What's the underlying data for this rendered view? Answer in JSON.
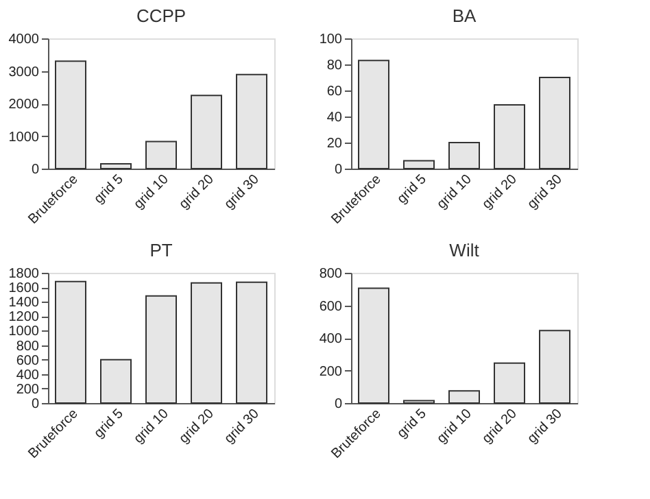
{
  "chart_data": [
    {
      "type": "bar",
      "title": "CCPP",
      "categories": [
        "Bruteforce",
        "grid 5",
        "grid 10",
        "grid 20",
        "grid 30"
      ],
      "values": [
        3300,
        150,
        830,
        2250,
        2890
      ],
      "color": "#e6e6e6",
      "ylim": [
        0,
        4000
      ],
      "yticks": [
        0,
        1000,
        2000,
        3000,
        4000
      ],
      "grid": false
    },
    {
      "type": "bar",
      "title": "BA",
      "categories": [
        "Bruteforce",
        "grid 5",
        "grid 10",
        "grid 20",
        "grid 30"
      ],
      "values": [
        83,
        6,
        20,
        49,
        70
      ],
      "color": "#e6e6e6",
      "ylim": [
        0,
        100
      ],
      "yticks": [
        0,
        20,
        40,
        60,
        80,
        100
      ],
      "grid": false
    },
    {
      "type": "bar",
      "title": "PT",
      "categories": [
        "Bruteforce",
        "grid 5",
        "grid 10",
        "grid 20",
        "grid 30"
      ],
      "values": [
        1680,
        600,
        1480,
        1660,
        1670
      ],
      "color": "#e6e6e6",
      "ylim": [
        0,
        1800
      ],
      "yticks": [
        0,
        200,
        400,
        600,
        800,
        1000,
        1200,
        1400,
        1600,
        1800
      ],
      "grid": false
    },
    {
      "type": "bar",
      "title": "Wilt",
      "categories": [
        "Bruteforce",
        "grid 5",
        "grid 10",
        "grid 20",
        "grid 30"
      ],
      "values": [
        705,
        15,
        75,
        245,
        445
      ],
      "color": "#e6e6e6",
      "ylim": [
        0,
        800
      ],
      "yticks": [
        0,
        200,
        400,
        600,
        800
      ],
      "grid": false
    }
  ]
}
